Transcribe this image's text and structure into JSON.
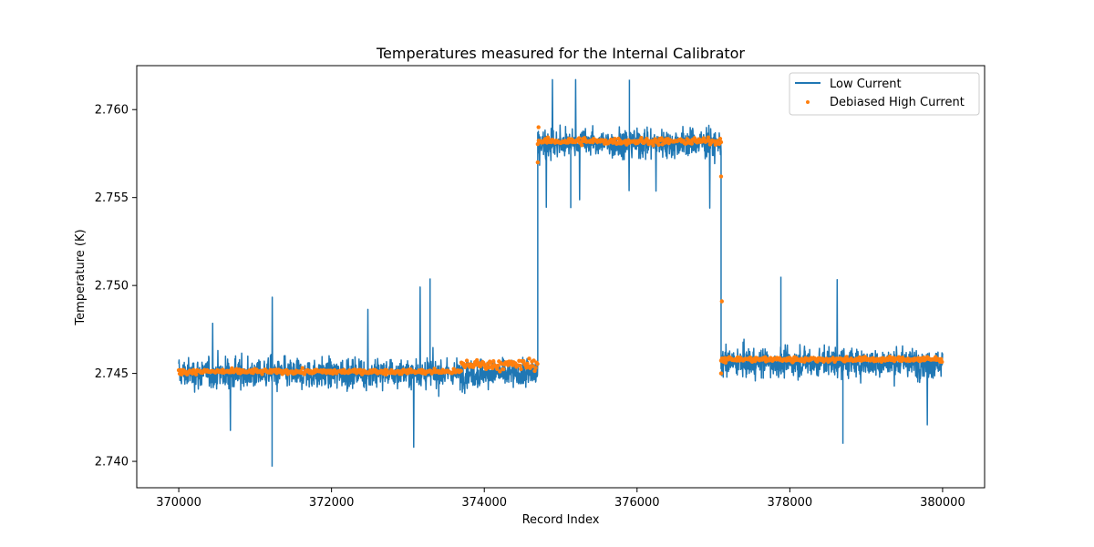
{
  "chart_data": {
    "type": "line",
    "title": "Temperatures measured for the Internal Calibrator",
    "xlabel": "Record Index",
    "ylabel": "Temperature (K)",
    "xlim": [
      369450,
      380550
    ],
    "ylim": [
      2.7385,
      2.7625
    ],
    "xticks": [
      370000,
      372000,
      374000,
      376000,
      378000,
      380000
    ],
    "xtick_labels": [
      "370000",
      "372000",
      "374000",
      "376000",
      "378000",
      "380000"
    ],
    "yticks": [
      2.74,
      2.745,
      2.75,
      2.755,
      2.76
    ],
    "ytick_labels": [
      "2.740",
      "2.745",
      "2.750",
      "2.755",
      "2.760"
    ],
    "legend_position": "top-right",
    "colors": {
      "low_current": "#1f77b4",
      "high_current": "#ff7f0e"
    },
    "series": [
      {
        "name": "Low Current",
        "kind": "line",
        "segments": [
          {
            "x_start": 370000,
            "x_end": 374700,
            "mean": 2.745,
            "noise": 0.0009,
            "max_excursion": 2.7504,
            "min_excursion": 2.7397
          },
          {
            "x_start": 374700,
            "x_end": 377100,
            "mean": 2.7581,
            "noise": 0.0009,
            "max_excursion": 2.7617,
            "min_excursion": 2.7544
          },
          {
            "x_start": 377100,
            "x_end": 380000,
            "mean": 2.7456,
            "noise": 0.0009,
            "max_excursion": 2.7505,
            "min_excursion": 2.741
          }
        ]
      },
      {
        "name": "Debiased High Current",
        "kind": "scatter",
        "segments": [
          {
            "x_start": 370000,
            "x_end": 373700,
            "mean": 2.7451,
            "spread": 0.00012
          },
          {
            "x_start": 373700,
            "x_end": 374700,
            "mean": 2.7455,
            "spread": 0.00025
          },
          {
            "x_start": 374700,
            "x_end": 377100,
            "mean": 2.7582,
            "spread": 0.00015
          },
          {
            "x_start": 377100,
            "x_end": 380000,
            "mean": 2.7458,
            "spread": 0.00012
          }
        ]
      }
    ]
  }
}
